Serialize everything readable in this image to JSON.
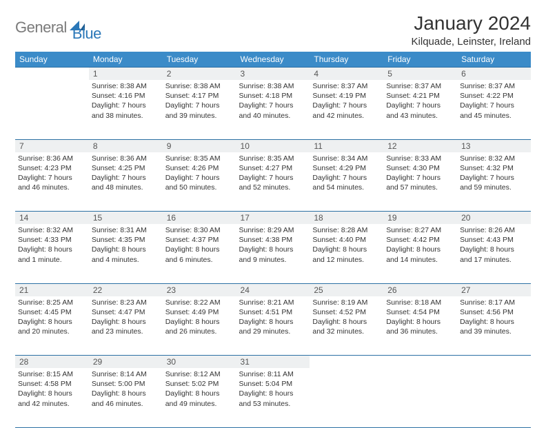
{
  "brand": {
    "gray": "General",
    "blue": "Blue"
  },
  "title": "January 2024",
  "location": "Kilquade, Leinster, Ireland",
  "colors": {
    "header_bg": "#3b8bc8",
    "header_text": "#ffffff",
    "daynum_bg": "#eef0f1",
    "border": "#2a6fa3",
    "text": "#333333",
    "logo_gray": "#7a7a7a",
    "logo_blue": "#2a77b8"
  },
  "weekdays": [
    "Sunday",
    "Monday",
    "Tuesday",
    "Wednesday",
    "Thursday",
    "Friday",
    "Saturday"
  ],
  "weeks": [
    {
      "nums": [
        "",
        "1",
        "2",
        "3",
        "4",
        "5",
        "6"
      ],
      "cells": [
        {
          "sunrise": "",
          "sunset": "",
          "daylight": ""
        },
        {
          "sunrise": "Sunrise: 8:38 AM",
          "sunset": "Sunset: 4:16 PM",
          "daylight": "Daylight: 7 hours and 38 minutes."
        },
        {
          "sunrise": "Sunrise: 8:38 AM",
          "sunset": "Sunset: 4:17 PM",
          "daylight": "Daylight: 7 hours and 39 minutes."
        },
        {
          "sunrise": "Sunrise: 8:38 AM",
          "sunset": "Sunset: 4:18 PM",
          "daylight": "Daylight: 7 hours and 40 minutes."
        },
        {
          "sunrise": "Sunrise: 8:37 AM",
          "sunset": "Sunset: 4:19 PM",
          "daylight": "Daylight: 7 hours and 42 minutes."
        },
        {
          "sunrise": "Sunrise: 8:37 AM",
          "sunset": "Sunset: 4:21 PM",
          "daylight": "Daylight: 7 hours and 43 minutes."
        },
        {
          "sunrise": "Sunrise: 8:37 AM",
          "sunset": "Sunset: 4:22 PM",
          "daylight": "Daylight: 7 hours and 45 minutes."
        }
      ]
    },
    {
      "nums": [
        "7",
        "8",
        "9",
        "10",
        "11",
        "12",
        "13"
      ],
      "cells": [
        {
          "sunrise": "Sunrise: 8:36 AM",
          "sunset": "Sunset: 4:23 PM",
          "daylight": "Daylight: 7 hours and 46 minutes."
        },
        {
          "sunrise": "Sunrise: 8:36 AM",
          "sunset": "Sunset: 4:25 PM",
          "daylight": "Daylight: 7 hours and 48 minutes."
        },
        {
          "sunrise": "Sunrise: 8:35 AM",
          "sunset": "Sunset: 4:26 PM",
          "daylight": "Daylight: 7 hours and 50 minutes."
        },
        {
          "sunrise": "Sunrise: 8:35 AM",
          "sunset": "Sunset: 4:27 PM",
          "daylight": "Daylight: 7 hours and 52 minutes."
        },
        {
          "sunrise": "Sunrise: 8:34 AM",
          "sunset": "Sunset: 4:29 PM",
          "daylight": "Daylight: 7 hours and 54 minutes."
        },
        {
          "sunrise": "Sunrise: 8:33 AM",
          "sunset": "Sunset: 4:30 PM",
          "daylight": "Daylight: 7 hours and 57 minutes."
        },
        {
          "sunrise": "Sunrise: 8:32 AM",
          "sunset": "Sunset: 4:32 PM",
          "daylight": "Daylight: 7 hours and 59 minutes."
        }
      ]
    },
    {
      "nums": [
        "14",
        "15",
        "16",
        "17",
        "18",
        "19",
        "20"
      ],
      "cells": [
        {
          "sunrise": "Sunrise: 8:32 AM",
          "sunset": "Sunset: 4:33 PM",
          "daylight": "Daylight: 8 hours and 1 minute."
        },
        {
          "sunrise": "Sunrise: 8:31 AM",
          "sunset": "Sunset: 4:35 PM",
          "daylight": "Daylight: 8 hours and 4 minutes."
        },
        {
          "sunrise": "Sunrise: 8:30 AM",
          "sunset": "Sunset: 4:37 PM",
          "daylight": "Daylight: 8 hours and 6 minutes."
        },
        {
          "sunrise": "Sunrise: 8:29 AM",
          "sunset": "Sunset: 4:38 PM",
          "daylight": "Daylight: 8 hours and 9 minutes."
        },
        {
          "sunrise": "Sunrise: 8:28 AM",
          "sunset": "Sunset: 4:40 PM",
          "daylight": "Daylight: 8 hours and 12 minutes."
        },
        {
          "sunrise": "Sunrise: 8:27 AM",
          "sunset": "Sunset: 4:42 PM",
          "daylight": "Daylight: 8 hours and 14 minutes."
        },
        {
          "sunrise": "Sunrise: 8:26 AM",
          "sunset": "Sunset: 4:43 PM",
          "daylight": "Daylight: 8 hours and 17 minutes."
        }
      ]
    },
    {
      "nums": [
        "21",
        "22",
        "23",
        "24",
        "25",
        "26",
        "27"
      ],
      "cells": [
        {
          "sunrise": "Sunrise: 8:25 AM",
          "sunset": "Sunset: 4:45 PM",
          "daylight": "Daylight: 8 hours and 20 minutes."
        },
        {
          "sunrise": "Sunrise: 8:23 AM",
          "sunset": "Sunset: 4:47 PM",
          "daylight": "Daylight: 8 hours and 23 minutes."
        },
        {
          "sunrise": "Sunrise: 8:22 AM",
          "sunset": "Sunset: 4:49 PM",
          "daylight": "Daylight: 8 hours and 26 minutes."
        },
        {
          "sunrise": "Sunrise: 8:21 AM",
          "sunset": "Sunset: 4:51 PM",
          "daylight": "Daylight: 8 hours and 29 minutes."
        },
        {
          "sunrise": "Sunrise: 8:19 AM",
          "sunset": "Sunset: 4:52 PM",
          "daylight": "Daylight: 8 hours and 32 minutes."
        },
        {
          "sunrise": "Sunrise: 8:18 AM",
          "sunset": "Sunset: 4:54 PM",
          "daylight": "Daylight: 8 hours and 36 minutes."
        },
        {
          "sunrise": "Sunrise: 8:17 AM",
          "sunset": "Sunset: 4:56 PM",
          "daylight": "Daylight: 8 hours and 39 minutes."
        }
      ]
    },
    {
      "nums": [
        "28",
        "29",
        "30",
        "31",
        "",
        "",
        ""
      ],
      "cells": [
        {
          "sunrise": "Sunrise: 8:15 AM",
          "sunset": "Sunset: 4:58 PM",
          "daylight": "Daylight: 8 hours and 42 minutes."
        },
        {
          "sunrise": "Sunrise: 8:14 AM",
          "sunset": "Sunset: 5:00 PM",
          "daylight": "Daylight: 8 hours and 46 minutes."
        },
        {
          "sunrise": "Sunrise: 8:12 AM",
          "sunset": "Sunset: 5:02 PM",
          "daylight": "Daylight: 8 hours and 49 minutes."
        },
        {
          "sunrise": "Sunrise: 8:11 AM",
          "sunset": "Sunset: 5:04 PM",
          "daylight": "Daylight: 8 hours and 53 minutes."
        },
        {
          "sunrise": "",
          "sunset": "",
          "daylight": ""
        },
        {
          "sunrise": "",
          "sunset": "",
          "daylight": ""
        },
        {
          "sunrise": "",
          "sunset": "",
          "daylight": ""
        }
      ]
    }
  ]
}
